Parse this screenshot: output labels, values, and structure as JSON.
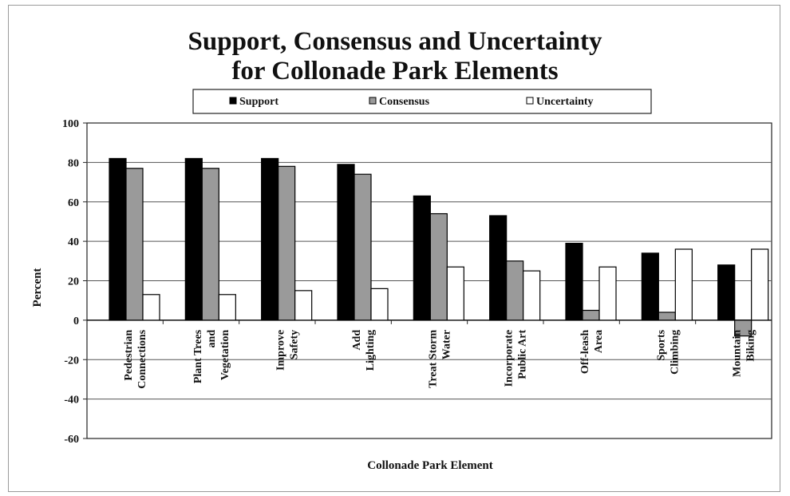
{
  "chart_data": {
    "type": "bar",
    "title_lines": [
      "Support, Consensus and Uncertainty",
      "for Collonade Park Elements"
    ],
    "xlabel": "Collonade Park Element",
    "ylabel": "Percent",
    "ylim": [
      -60,
      100
    ],
    "yticks": [
      100,
      80,
      60,
      40,
      20,
      0,
      -20,
      -40,
      -60
    ],
    "grid": true,
    "legend_position": "top",
    "categories": [
      [
        "Pedestrian",
        "Connections"
      ],
      [
        "Plant Trees",
        "and",
        "Vegetation"
      ],
      [
        "Improve",
        "Safety"
      ],
      [
        "Add",
        "Lighting"
      ],
      [
        "Treat Storm",
        "Water"
      ],
      [
        "Incorporate",
        "Public Art"
      ],
      [
        "Off-leash",
        "Area"
      ],
      [
        "Sports",
        "Climbing"
      ],
      [
        "Mountain",
        "Biking"
      ]
    ],
    "series": [
      {
        "name": "Support",
        "color": "#000000",
        "values": [
          82,
          82,
          82,
          79,
          63,
          53,
          39,
          34,
          28
        ]
      },
      {
        "name": "Consensus",
        "color": "#9a9a9a",
        "values": [
          77,
          77,
          78,
          74,
          54,
          30,
          5,
          4,
          -8
        ]
      },
      {
        "name": "Uncertainty",
        "color": "#ffffff",
        "values": [
          13,
          13,
          15,
          16,
          27,
          25,
          27,
          36,
          36
        ]
      }
    ]
  }
}
